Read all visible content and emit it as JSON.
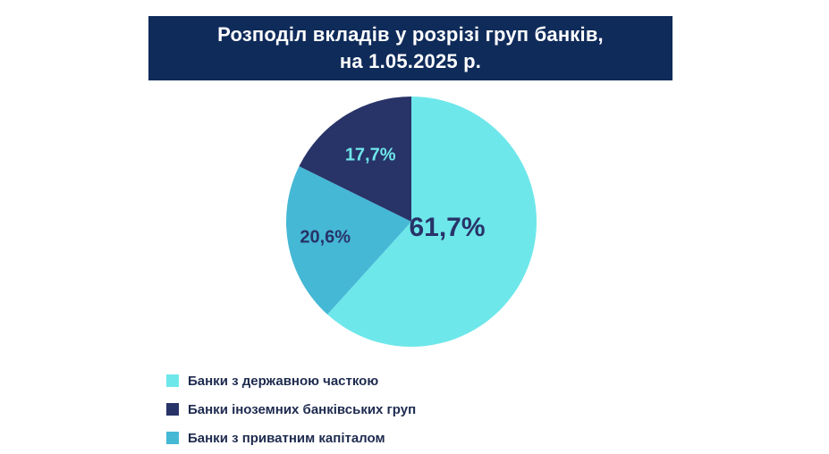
{
  "title": {
    "line1": "Розподіл вкладів у розрізі груп банків,",
    "line2": "на 1.05.2025 р."
  },
  "colors": {
    "banner": "#0f2b5a",
    "state": "#6ee7ea",
    "foreign": "#283368",
    "private": "#45b8d6"
  },
  "chart_data": {
    "type": "pie",
    "title": "Розподіл вкладів у розрізі груп банків, на 1.05.2025 р.",
    "slices": [
      {
        "name": "Банки з державною часткою",
        "value": 61.7,
        "label": "61,7%",
        "color": "#6ee7ea",
        "label_color": "#283368"
      },
      {
        "name": "Банки з приватним капіталом",
        "value": 20.6,
        "label": "20,6%",
        "color": "#45b8d6",
        "label_color": "#283368"
      },
      {
        "name": "Банки іноземних банківських груп",
        "value": 17.7,
        "label": "17,7%",
        "color": "#283368",
        "label_color": "#6ee7ea"
      }
    ],
    "legend": {
      "position": "bottom-left",
      "items": [
        {
          "label": "Банки з державною часткою",
          "color": "#6ee7ea"
        },
        {
          "label": "Банки іноземних банківських груп",
          "color": "#283368"
        },
        {
          "label": "Банки з приватним капіталом",
          "color": "#45b8d6"
        }
      ]
    }
  }
}
